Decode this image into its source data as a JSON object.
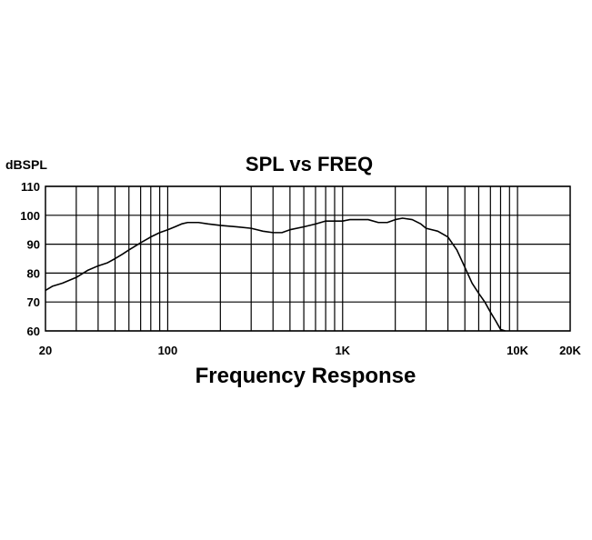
{
  "chart_data": {
    "type": "line",
    "title": "SPL vs FREQ",
    "xlabel": "Frequency Response",
    "ylabel": "dBSPL",
    "x_scale": "log",
    "xlim": [
      20,
      20000
    ],
    "ylim": [
      60,
      110
    ],
    "grid": true,
    "x_ticks": [
      {
        "value": 20,
        "label": "20"
      },
      {
        "value": 100,
        "label": "100"
      },
      {
        "value": 1000,
        "label": "1K"
      },
      {
        "value": 10000,
        "label": "10K"
      },
      {
        "value": 20000,
        "label": "20K"
      }
    ],
    "y_ticks": [
      {
        "value": 110,
        "label": "110"
      },
      {
        "value": 100,
        "label": "100"
      },
      {
        "value": 90,
        "label": "90"
      },
      {
        "value": 80,
        "label": "80"
      },
      {
        "value": 70,
        "label": "70"
      },
      {
        "value": 60,
        "label": "60"
      }
    ],
    "series": [
      {
        "x": [
          20,
          22,
          25,
          30,
          35,
          40,
          45,
          50,
          55,
          60,
          70,
          80,
          90,
          100,
          110,
          120,
          130,
          140,
          150,
          170,
          200,
          250,
          300,
          350,
          400,
          450,
          500,
          600,
          700,
          800,
          900,
          1000,
          1100,
          1200,
          1400,
          1600,
          1800,
          2000,
          2200,
          2500,
          2800,
          3000,
          3500,
          4000,
          4500,
          5000,
          5500,
          6000,
          6500,
          7000,
          7500,
          8000,
          8500
        ],
        "y": [
          74,
          75.5,
          76.5,
          78.5,
          81,
          82.5,
          83.5,
          85,
          86.5,
          88,
          90.5,
          92.5,
          94,
          95,
          96,
          97,
          97.5,
          97.5,
          97.5,
          97,
          96.5,
          96,
          95.5,
          94.5,
          94,
          94,
          95,
          96,
          97,
          98,
          98,
          98,
          98.5,
          98.5,
          98.5,
          97.5,
          97.5,
          98.5,
          99,
          98.5,
          97,
          95.5,
          94.5,
          92.5,
          88,
          82,
          76.5,
          73,
          70,
          66.5,
          63.5,
          60.5,
          60
        ]
      }
    ]
  }
}
